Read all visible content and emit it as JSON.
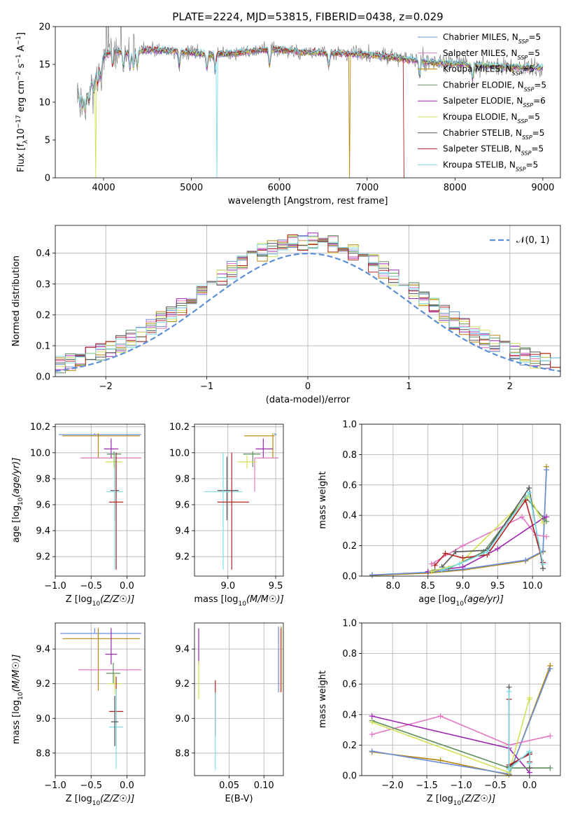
{
  "figure": {
    "title": "PLATE=2224, MJD=53815, FIBERID=0438, z=0.029"
  },
  "colors": {
    "Chabrier MILES": "#6a8fd8",
    "Salpeter MILES": "#e377c2",
    "Kroupa MILES": "#b8860b",
    "Chabrier ELODIE": "#5f8f5f",
    "Salpeter ELODIE": "#9c27b0",
    "Kroupa ELODIE": "#d4e157",
    "Chabrier STELIB": "#555555",
    "Salpeter STELIB": "#b22222",
    "Kroupa STELIB": "#80deea",
    "spectrum": "#808080",
    "gauss": "#5b8fd8",
    "model_orange": "#ff7f0e"
  },
  "chart_data": [
    {
      "id": "spectrum",
      "type": "line",
      "xlabel": "wavelength [Angstrom, rest frame]",
      "ylabel": "Flux [f_λ10^-17 erg cm^-2 s^-1 A^-1]",
      "xlim": [
        3450,
        9200
      ],
      "ylim": [
        0,
        20
      ],
      "xticks": [
        4000,
        5000,
        6000,
        7000,
        8000,
        9000
      ],
      "yticks": [
        0,
        5,
        10,
        15,
        20
      ],
      "grid": false,
      "legend_position": "upper right",
      "legend": [
        {
          "name": "Chabrier MILES",
          "label": "Chabrier MILES, N",
          "sub": "SSP",
          "suffix": "=5"
        },
        {
          "name": "Salpeter MILES",
          "label": "Salpeter MILES, N",
          "sub": "SSP",
          "suffix": "=5"
        },
        {
          "name": "Kroupa MILES",
          "label": "Kroupa MILES, N",
          "sub": "SSP",
          "suffix": "=5"
        },
        {
          "name": "Chabrier ELODIE",
          "label": "Chabrier ELODIE, N",
          "sub": "SSP",
          "suffix": "=5"
        },
        {
          "name": "Salpeter ELODIE",
          "label": "Salpeter ELODIE, N",
          "sub": "SSP",
          "suffix": "=6"
        },
        {
          "name": "Kroupa ELODIE",
          "label": "Kroupa ELODIE, N",
          "sub": "SSP",
          "suffix": "=5"
        },
        {
          "name": "Chabrier STELIB",
          "label": "Chabrier STELIB, N",
          "sub": "SSP",
          "suffix": "=5"
        },
        {
          "name": "Salpeter STELIB",
          "label": "Salpeter STELIB, N",
          "sub": "SSP",
          "suffix": "=5"
        },
        {
          "name": "Kroupa STELIB",
          "label": "Kroupa STELIB, N",
          "sub": "SSP",
          "suffix": "=5"
        }
      ],
      "continuum": [
        [
          3700,
          12.0
        ],
        [
          3800,
          11.0
        ],
        [
          3900,
          13.5
        ],
        [
          4000,
          16.0
        ],
        [
          4100,
          16.8
        ],
        [
          4300,
          16.5
        ],
        [
          4500,
          16.9
        ],
        [
          4800,
          16.8
        ],
        [
          5000,
          16.6
        ],
        [
          5200,
          16.3
        ],
        [
          5500,
          16.5
        ],
        [
          5800,
          16.9
        ],
        [
          6000,
          16.9
        ],
        [
          6300,
          16.6
        ],
        [
          6600,
          16.5
        ],
        [
          7000,
          16.3
        ],
        [
          7400,
          15.8
        ],
        [
          7700,
          15.3
        ],
        [
          8000,
          15.1
        ],
        [
          8400,
          14.8
        ],
        [
          8800,
          14.6
        ],
        [
          9000,
          14.6
        ]
      ],
      "dropouts": [
        {
          "series": "Kroupa ELODIE",
          "x": 3910
        },
        {
          "series": "Kroupa STELIB",
          "x": 5290
        },
        {
          "series": "Kroupa MILES",
          "x": 6800
        },
        {
          "series": "Salpeter STELIB",
          "x": 7420
        }
      ]
    },
    {
      "id": "residuals",
      "type": "histogram",
      "xlabel": "(data-model)/error",
      "ylabel": "Normed distribution",
      "xlim": [
        -2.5,
        2.5
      ],
      "ylim": [
        0,
        0.49
      ],
      "xticks": [
        -2,
        -1,
        0,
        1,
        2
      ],
      "yticks": [
        0.0,
        0.1,
        0.2,
        0.3,
        0.4
      ],
      "grid": true,
      "bin_width": 0.1,
      "legend_position": "upper right",
      "gauss_label": "𝒩(0, 1)"
    },
    {
      "id": "age_vs_Z",
      "type": "errorbar",
      "xlabel": "Z [log10(Z/Z☉)]",
      "ylabel": "age  [log10(age/yr)]",
      "xlim": [
        -1.0,
        0.25
      ],
      "ylim": [
        9.05,
        10.22
      ],
      "xticks": [
        -1.0,
        -0.5,
        0.0
      ],
      "yticks": [
        9.2,
        9.4,
        9.6,
        9.8,
        10.0,
        10.2
      ],
      "grid": true,
      "points": [
        {
          "series": "Chabrier MILES",
          "x": -0.45,
          "xerr": [
            0.5,
            0.65
          ],
          "y": 10.14,
          "yerr": [
            0.0,
            0.01
          ]
        },
        {
          "series": "Kroupa MILES",
          "x": -0.4,
          "xerr": [
            0.5,
            0.58
          ],
          "y": 10.13,
          "yerr": [
            0.17,
            0.02
          ]
        },
        {
          "series": "Salpeter MILES",
          "x": -0.3,
          "xerr": [
            0.35,
            0.5
          ],
          "y": 9.96,
          "yerr": [
            0.0,
            0.0
          ]
        },
        {
          "series": "Salpeter ELODIE",
          "x": -0.22,
          "xerr": [
            0.1,
            0.1
          ],
          "y": 10.03,
          "yerr": [
            0.07,
            0.08
          ]
        },
        {
          "series": "Chabrier ELODIE",
          "x": -0.18,
          "xerr": [
            0.1,
            0.1
          ],
          "y": 9.99,
          "yerr": [
            0.1,
            0.02
          ]
        },
        {
          "series": "Kroupa ELODIE",
          "x": -0.18,
          "xerr": [
            0.12,
            0.12
          ],
          "y": 9.93,
          "yerr": [
            0.05,
            0.05
          ]
        },
        {
          "series": "Chabrier STELIB",
          "x": -0.17,
          "xerr": [
            0.06,
            0.06
          ],
          "y": 9.71,
          "yerr": [
            0.23,
            0.26
          ]
        },
        {
          "series": "Kroupa STELIB",
          "x": -0.17,
          "xerr": [
            0.12,
            0.12
          ],
          "y": 9.7,
          "yerr": [
            0.6,
            0.3
          ]
        },
        {
          "series": "Salpeter STELIB",
          "x": -0.15,
          "xerr": [
            0.1,
            0.1
          ],
          "y": 9.62,
          "yerr": [
            0.52,
            0.38
          ]
        }
      ]
    },
    {
      "id": "age_vs_mass",
      "type": "errorbar",
      "xlabel": "mass [log10(M/M☉)]",
      "ylabel": "",
      "xlim": [
        8.65,
        9.58
      ],
      "ylim": [
        9.05,
        10.22
      ],
      "xticks": [
        9.0,
        9.5
      ],
      "yticks": [
        9.2,
        9.4,
        9.6,
        9.8,
        10.0,
        10.2
      ],
      "grid": true,
      "points": [
        {
          "series": "Chabrier MILES",
          "x": 9.49,
          "xerr": [
            0.0,
            0.02
          ],
          "y": 10.14,
          "yerr": [
            0.0,
            0.01
          ]
        },
        {
          "series": "Kroupa MILES",
          "x": 9.47,
          "xerr": [
            0.3,
            0.02
          ],
          "y": 10.13,
          "yerr": [
            0.17,
            0.02
          ]
        },
        {
          "series": "Salpeter ELODIE",
          "x": 9.37,
          "xerr": [
            0.08,
            0.1
          ],
          "y": 10.03,
          "yerr": [
            0.07,
            0.08
          ]
        },
        {
          "series": "Chabrier ELODIE",
          "x": 9.26,
          "xerr": [
            0.1,
            0.08
          ],
          "y": 9.99,
          "yerr": [
            0.1,
            0.02
          ]
        },
        {
          "series": "Salpeter MILES",
          "x": 9.28,
          "xerr": [
            0.0,
            0.25
          ],
          "y": 9.96,
          "yerr": [
            0.26,
            0.0
          ]
        },
        {
          "series": "Kroupa ELODIE",
          "x": 9.2,
          "xerr": [
            0.1,
            0.1
          ],
          "y": 9.93,
          "yerr": [
            0.05,
            0.05
          ]
        },
        {
          "series": "Chabrier STELIB",
          "x": 8.99,
          "xerr": [
            0.1,
            0.12
          ],
          "y": 9.71,
          "yerr": [
            0.23,
            0.26
          ]
        },
        {
          "series": "Kroupa STELIB",
          "x": 8.95,
          "xerr": [
            0.2,
            0.2
          ],
          "y": 9.7,
          "yerr": [
            0.6,
            0.3
          ]
        },
        {
          "series": "Salpeter STELIB",
          "x": 9.04,
          "xerr": [
            0.15,
            0.18
          ],
          "y": 9.62,
          "yerr": [
            0.52,
            0.38
          ]
        }
      ]
    },
    {
      "id": "weight_vs_age",
      "type": "line",
      "xlabel": "age  [log10(age/yr)]",
      "ylabel": "mass weight",
      "xlim": [
        7.55,
        10.4
      ],
      "ylim": [
        0,
        1.0
      ],
      "xticks": [
        8.0,
        8.5,
        9.0,
        9.5,
        10.0
      ],
      "yticks": [
        0.0,
        0.2,
        0.4,
        0.6,
        0.8,
        1.0
      ],
      "grid": true,
      "series": [
        {
          "name": "Kroupa MILES",
          "x": [
            7.7,
            8.5,
            9.0,
            9.9,
            10.15,
            10.2
          ],
          "y": [
            0.005,
            0.02,
            0.04,
            0.1,
            0.16,
            0.72
          ]
        },
        {
          "name": "Chabrier MILES",
          "x": [
            7.7,
            8.5,
            9.0,
            9.9,
            10.15,
            10.2
          ],
          "y": [
            0.008,
            0.025,
            0.045,
            0.105,
            0.165,
            0.7
          ]
        },
        {
          "name": "Salpeter MILES",
          "x": [
            8.55,
            9.0,
            9.85,
            10.05,
            10.2
          ],
          "y": [
            0.08,
            0.2,
            0.39,
            0.27,
            0.26
          ]
        },
        {
          "name": "Salpeter ELODIE",
          "x": [
            8.5,
            9.0,
            9.5,
            10.15,
            10.2
          ],
          "y": [
            0.03,
            0.06,
            0.18,
            0.38,
            0.39
          ]
        },
        {
          "name": "Chabrier ELODIE",
          "x": [
            8.6,
            8.8,
            9.3,
            9.9,
            10.2
          ],
          "y": [
            0.04,
            0.05,
            0.16,
            0.52,
            0.36
          ]
        },
        {
          "name": "Kroupa ELODIE",
          "x": [
            8.55,
            8.95,
            9.95,
            10.15
          ],
          "y": [
            0.03,
            0.08,
            0.53,
            0.35
          ]
        },
        {
          "name": "Chabrier STELIB",
          "x": [
            8.7,
            8.9,
            9.35,
            9.95,
            10.15
          ],
          "y": [
            0.06,
            0.16,
            0.17,
            0.58,
            0.05
          ]
        },
        {
          "name": "Salpeter STELIB",
          "x": [
            8.6,
            8.75,
            9.0,
            9.35,
            9.9,
            10.15
          ],
          "y": [
            0.07,
            0.15,
            0.12,
            0.14,
            0.5,
            0.09
          ]
        },
        {
          "name": "Kroupa STELIB",
          "x": [
            8.7,
            8.95,
            9.35,
            9.95,
            10.15
          ],
          "y": [
            0.04,
            0.08,
            0.16,
            0.55,
            0.08
          ]
        }
      ]
    },
    {
      "id": "mass_vs_Z",
      "type": "errorbar",
      "xlabel": "Z [log10(Z/Z☉)]",
      "ylabel": "mass [log10(M/M☉)]",
      "xlim": [
        -1.0,
        0.25
      ],
      "ylim": [
        8.67,
        9.55
      ],
      "xticks": [
        -1.0,
        -0.5,
        0.0
      ],
      "yticks": [
        8.8,
        9.0,
        9.2,
        9.4
      ],
      "grid": true,
      "points": [
        {
          "series": "Chabrier MILES",
          "x": -0.45,
          "xerr": [
            0.48,
            0.65
          ],
          "y": 9.49,
          "yerr": [
            0.0,
            0.03
          ]
        },
        {
          "series": "Kroupa MILES",
          "x": -0.4,
          "xerr": [
            0.5,
            0.58
          ],
          "y": 9.46,
          "yerr": [
            0.3,
            0.06
          ]
        },
        {
          "series": "Salpeter ELODIE",
          "x": -0.22,
          "xerr": [
            0.08,
            0.08
          ],
          "y": 9.37,
          "yerr": [
            0.06,
            0.15
          ]
        },
        {
          "series": "Salpeter MILES",
          "x": -0.3,
          "xerr": [
            0.38,
            0.5
          ],
          "y": 9.28,
          "yerr": [
            0.0,
            0.0
          ]
        },
        {
          "series": "Chabrier ELODIE",
          "x": -0.19,
          "xerr": [
            0.1,
            0.1
          ],
          "y": 9.26,
          "yerr": [
            0.06,
            0.06
          ]
        },
        {
          "series": "Kroupa ELODIE",
          "x": -0.17,
          "xerr": [
            0.1,
            0.1
          ],
          "y": 9.2,
          "yerr": [
            0.06,
            0.06
          ]
        },
        {
          "series": "Salpeter STELIB",
          "x": -0.15,
          "xerr": [
            0.1,
            0.1
          ],
          "y": 9.04,
          "yerr": [
            0.2,
            0.2
          ]
        },
        {
          "series": "Kroupa STELIB",
          "x": -0.15,
          "xerr": [
            0.1,
            0.1
          ],
          "y": 8.95,
          "yerr": [
            0.24,
            0.22
          ]
        },
        {
          "series": "Chabrier STELIB",
          "x": -0.17,
          "xerr": [
            0.05,
            0.05
          ],
          "y": 8.98,
          "yerr": [
            0.14,
            0.15
          ]
        }
      ]
    },
    {
      "id": "mass_vs_EBV",
      "type": "errorbar",
      "xlabel": "E(B-V)",
      "ylabel": "",
      "xlim": [
        0.0,
        0.128
      ],
      "ylim": [
        8.67,
        9.55
      ],
      "xticks": [
        0.05,
        0.1
      ],
      "yticks": [
        8.8,
        9.0,
        9.2,
        9.4
      ],
      "grid": true,
      "points": [
        {
          "series": "Salpeter ELODIE",
          "x": 0.006,
          "xerr": [
            0,
            0
          ],
          "y": 9.37,
          "yerr": [
            0.06,
            0.15
          ]
        },
        {
          "series": "Kroupa ELODIE",
          "x": 0.006,
          "xerr": [
            0,
            0
          ],
          "y": 9.22,
          "yerr": [
            0.11,
            0.11
          ]
        },
        {
          "series": "Salpeter STELIB",
          "x": 0.03,
          "xerr": [
            0,
            0
          ],
          "y": 9.05,
          "yerr": [
            0.15,
            0.17
          ]
        },
        {
          "series": "Kroupa STELIB",
          "x": 0.03,
          "xerr": [
            0,
            0
          ],
          "y": 8.93,
          "yerr": [
            0.23,
            0.22
          ]
        },
        {
          "series": "Chabrier MILES",
          "x": 0.121,
          "xerr": [
            0,
            0
          ],
          "y": 9.35,
          "yerr": [
            0.2,
            0.18
          ]
        },
        {
          "series": "Salpeter MILES",
          "x": 0.124,
          "xerr": [
            0,
            0
          ],
          "y": 9.3,
          "yerr": [
            0.15,
            0.22
          ]
        },
        {
          "series": "Kroupa MILES",
          "x": 0.125,
          "xerr": [
            0,
            0
          ],
          "y": 9.25,
          "yerr": [
            0.1,
            0.28
          ]
        }
      ]
    },
    {
      "id": "weight_vs_Z",
      "type": "line",
      "xlabel": "Z [log10(Z/Z☉)]",
      "ylabel": "mass weight",
      "xlim": [
        -2.45,
        0.45
      ],
      "ylim": [
        0,
        1.0
      ],
      "xticks": [
        -2.0,
        -1.5,
        -1.0,
        -0.5,
        0.0
      ],
      "yticks": [
        0.0,
        0.2,
        0.4,
        0.6,
        0.8,
        1.0
      ],
      "grid": true,
      "series": [
        {
          "name": "Kroupa MILES",
          "x": [
            -2.3,
            -1.3,
            -0.3,
            0.3,
            0.3
          ],
          "y": [
            0.155,
            0.1,
            0.005,
            0.72,
            0.72
          ]
        },
        {
          "name": "Chabrier MILES",
          "x": [
            -2.3,
            -0.3,
            0.3
          ],
          "y": [
            0.16,
            0.01,
            0.7
          ]
        },
        {
          "name": "Salpeter MILES",
          "x": [
            -2.3,
            -1.3,
            -0.3,
            0.3
          ],
          "y": [
            0.27,
            0.39,
            0.2,
            0.26
          ]
        },
        {
          "name": "Salpeter ELODIE",
          "x": [
            -2.3,
            -0.3,
            0.0
          ],
          "y": [
            0.39,
            0.18,
            0.02
          ]
        },
        {
          "name": "Chabrier ELODIE",
          "x": [
            -2.3,
            -0.3,
            0.0,
            0.3
          ],
          "y": [
            0.36,
            0.05,
            0.05,
            0.05
          ]
        },
        {
          "name": "Kroupa ELODIE",
          "x": [
            -2.3,
            -0.3,
            0.0,
            0.0
          ],
          "y": [
            0.35,
            0.02,
            0.51,
            0.5
          ]
        },
        {
          "name": "Chabrier STELIB",
          "x": [
            -0.3,
            -0.3,
            0.0,
            0.0
          ],
          "y": [
            0.58,
            0.06,
            0.15,
            0.05
          ]
        },
        {
          "name": "Salpeter STELIB",
          "x": [
            -0.3,
            -0.3,
            0.0,
            0.0
          ],
          "y": [
            0.5,
            0.07,
            0.14,
            0.09
          ]
        },
        {
          "name": "Kroupa STELIB",
          "x": [
            -0.3,
            -0.3,
            0.0,
            0.0
          ],
          "y": [
            0.55,
            0.04,
            0.16,
            0.08
          ]
        }
      ]
    }
  ]
}
